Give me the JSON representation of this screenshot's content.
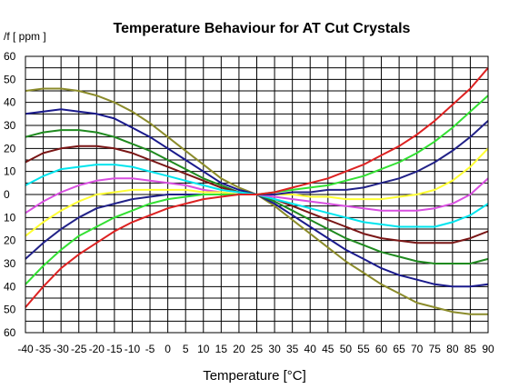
{
  "chart_data": {
    "type": "line",
    "title": "Temperature Behaviour for AT Cut Crystals",
    "xlabel": "Temperature [°C]",
    "ylabel": "/f [ ppm ]",
    "xlim": [
      -40,
      90
    ],
    "ylim": [
      -60,
      60
    ],
    "x_ticks": [
      -40,
      -35,
      -30,
      -25,
      -20,
      -15,
      -10,
      -5,
      0,
      5,
      10,
      15,
      20,
      25,
      30,
      35,
      40,
      45,
      50,
      55,
      60,
      65,
      70,
      75,
      80,
      85,
      90
    ],
    "y_ticks": [
      60,
      50,
      40,
      30,
      20,
      10,
      0,
      -10,
      -20,
      -30,
      -40,
      -50,
      -60
    ],
    "y_tick_labels": [
      "60",
      "50",
      "40",
      "30",
      "20",
      "10",
      "0",
      "10",
      "20",
      "30",
      "40",
      "50",
      "60"
    ],
    "grid": true,
    "legend": "none",
    "x": [
      -40,
      -35,
      -30,
      -25,
      -20,
      -15,
      -10,
      -5,
      0,
      5,
      10,
      15,
      20,
      25,
      30,
      35,
      40,
      45,
      50,
      55,
      60,
      65,
      70,
      75,
      80,
      85,
      90
    ],
    "series": [
      {
        "color": "#8b8b2a",
        "values": [
          45,
          46,
          46,
          45,
          43,
          40,
          36,
          31,
          25,
          19,
          13,
          7,
          3,
          0,
          -5,
          -11,
          -17,
          -23,
          -29,
          -34,
          -39,
          -43,
          -47,
          -49,
          -51,
          -52,
          -52
        ]
      },
      {
        "color": "#1a1a8c",
        "values": [
          35,
          36,
          37,
          36,
          35,
          33,
          29,
          25,
          20,
          15,
          10,
          5,
          2,
          0,
          -4,
          -9,
          -14,
          -19,
          -24,
          -28,
          -32,
          -35,
          -37,
          -39,
          -40,
          -40,
          -39
        ]
      },
      {
        "color": "#1f8a1f",
        "values": [
          25,
          27,
          28,
          28,
          27,
          25,
          22,
          19,
          15,
          11,
          7,
          4,
          1,
          0,
          -3,
          -7,
          -11,
          -15,
          -19,
          -22,
          -25,
          -27,
          -29,
          -30,
          -30,
          -30,
          -28
        ]
      },
      {
        "color": "#7a1616",
        "values": [
          14,
          18,
          20,
          21,
          21,
          20,
          18,
          15,
          12,
          9,
          6,
          3,
          1,
          0,
          -2,
          -5,
          -8,
          -11,
          -14,
          -17,
          -19,
          -20,
          -21,
          -21,
          -21,
          -19,
          -16
        ]
      },
      {
        "color": "#00e5ee",
        "values": [
          4,
          8,
          11,
          12,
          13,
          13,
          12,
          10,
          8,
          6,
          4,
          2,
          1,
          0,
          -2,
          -4,
          -6,
          -8,
          -10,
          -12,
          -13,
          -14,
          -14,
          -14,
          -12,
          -9,
          -4
        ]
      },
      {
        "color": "#d84fe0",
        "values": [
          -8,
          -3,
          1,
          4,
          6,
          7,
          7,
          6,
          5,
          4,
          2,
          1,
          0,
          0,
          -1,
          -2,
          -3,
          -4,
          -5,
          -6,
          -7,
          -7,
          -7,
          -6,
          -4,
          0,
          7
        ]
      },
      {
        "color": "#ffff33",
        "values": [
          -18,
          -12,
          -7,
          -3,
          0,
          1,
          2,
          2,
          2,
          2,
          1,
          1,
          0,
          0,
          0,
          0,
          -1,
          -1,
          -2,
          -2,
          -2,
          -1,
          0,
          2,
          6,
          12,
          20
        ]
      },
      {
        "color": "#222288",
        "values": [
          -28,
          -21,
          -15,
          -10,
          -6,
          -4,
          -2,
          -1,
          0,
          0,
          0,
          0,
          0,
          0,
          0,
          1,
          1,
          2,
          2,
          3,
          5,
          7,
          10,
          14,
          19,
          25,
          32
        ]
      },
      {
        "color": "#33e033",
        "values": [
          -39,
          -31,
          -24,
          -18,
          -14,
          -10,
          -7,
          -4,
          -2,
          -1,
          0,
          0,
          0,
          0,
          1,
          2,
          3,
          4,
          6,
          8,
          11,
          14,
          18,
          23,
          29,
          36,
          43
        ]
      },
      {
        "color": "#dd2222",
        "values": [
          -49,
          -40,
          -32,
          -26,
          -21,
          -16,
          -12,
          -9,
          -6,
          -4,
          -2,
          -1,
          0,
          0,
          1,
          3,
          5,
          7,
          10,
          13,
          17,
          21,
          26,
          32,
          39,
          46,
          55
        ]
      }
    ]
  }
}
